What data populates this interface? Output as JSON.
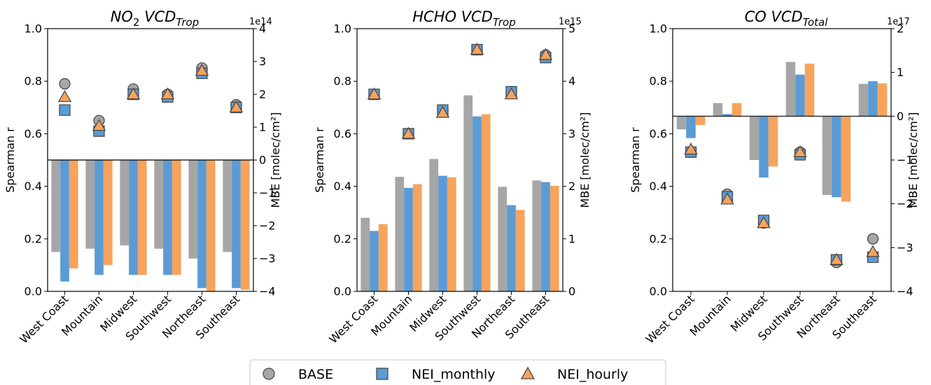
{
  "figure": {
    "legend": [
      {
        "name": "BASE",
        "marker": "circle",
        "color": "#a6a6a6"
      },
      {
        "name": "NEI_monthly",
        "marker": "square",
        "color": "#5b9bd5"
      },
      {
        "name": "NEI_hourly",
        "marker": "triangle",
        "color": "#f7a35c"
      }
    ],
    "legend_placement": "bottom-center",
    "marker_edge_color": "#4a4a4a"
  },
  "chart_data": [
    {
      "type": "bar",
      "title_main": "NO",
      "title_sub_small": "2",
      "title_mid": " VCD",
      "title_sub": "Trop",
      "ylabel_left": "Spearman r",
      "ylabel_right": "MBE [molec/cm²]",
      "right_axis_offset": "1e14",
      "categories": [
        "West Coast",
        "Mountain",
        "Midwest",
        "Southwest",
        "Northeast",
        "Southeast"
      ],
      "ylim_left": [
        0.0,
        1.0
      ],
      "yticks_left": [
        "0.0",
        "0.2",
        "0.4",
        "0.6",
        "0.8",
        "1.0"
      ],
      "ylim_right": [
        -4,
        4
      ],
      "yticks_right": [
        "−4",
        "−3",
        "−2",
        "−1",
        "0",
        "1",
        "2",
        "3",
        "4"
      ],
      "zero_line": 0,
      "mbe_series": [
        {
          "name": "BASE",
          "values": [
            -2.8,
            -2.7,
            -2.6,
            -2.7,
            -3.0,
            -2.8
          ]
        },
        {
          "name": "NEI_monthly",
          "values": [
            -3.7,
            -3.5,
            -3.5,
            -3.5,
            -3.9,
            -3.9
          ]
        },
        {
          "name": "NEI_hourly",
          "values": [
            -3.3,
            -3.2,
            -3.5,
            -3.5,
            -4.0,
            -3.95
          ]
        }
      ],
      "r_series": [
        {
          "name": "BASE",
          "values": [
            0.79,
            0.65,
            0.77,
            0.75,
            0.85,
            0.71
          ]
        },
        {
          "name": "NEI_monthly",
          "values": [
            0.69,
            0.61,
            0.75,
            0.74,
            0.83,
            0.7
          ]
        },
        {
          "name": "NEI_hourly",
          "values": [
            0.74,
            0.63,
            0.75,
            0.75,
            0.84,
            0.7
          ]
        }
      ]
    },
    {
      "type": "bar",
      "title_main": "HCHO",
      "title_sub_small": "",
      "title_mid": " VCD",
      "title_sub": "Trop",
      "ylabel_left": "Spearman r",
      "ylabel_right": "MBE [molec/cm²]",
      "right_axis_offset": "1e15",
      "categories": [
        "West Coast",
        "Mountain",
        "Midwest",
        "Southwest",
        "Northeast",
        "Southeast"
      ],
      "ylim_left": [
        0.0,
        1.0
      ],
      "yticks_left": [
        "0.0",
        "0.2",
        "0.4",
        "0.6",
        "0.8",
        "1.0"
      ],
      "ylim_right": [
        0,
        5
      ],
      "yticks_right": [
        "0",
        "1",
        "2",
        "3",
        "4",
        "5"
      ],
      "zero_line": null,
      "mbe_series": [
        {
          "name": "BASE",
          "values": [
            1.4,
            2.18,
            2.52,
            3.73,
            1.99,
            2.11
          ]
        },
        {
          "name": "NEI_monthly",
          "values": [
            1.15,
            1.97,
            2.2,
            3.33,
            1.64,
            2.08
          ]
        },
        {
          "name": "NEI_hourly",
          "values": [
            1.28,
            2.04,
            2.17,
            3.37,
            1.55,
            2.01
          ]
        }
      ],
      "r_series": [
        {
          "name": "BASE",
          "values": [
            0.75,
            0.6,
            0.69,
            0.92,
            0.76,
            0.9
          ]
        },
        {
          "name": "NEI_monthly",
          "values": [
            0.75,
            0.6,
            0.69,
            0.92,
            0.76,
            0.89
          ]
        },
        {
          "name": "NEI_hourly",
          "values": [
            0.75,
            0.6,
            0.68,
            0.92,
            0.75,
            0.9
          ]
        }
      ]
    },
    {
      "type": "bar",
      "title_main": "CO",
      "title_sub_small": "",
      "title_mid": " VCD",
      "title_sub": "Total",
      "ylabel_left": "Spearman r",
      "ylabel_right": "MBE [molec/cm²]",
      "right_axis_offset": "1e17",
      "categories": [
        "West Coast",
        "Mountain",
        "Midwest",
        "Southwest",
        "Northeast",
        "Southeast"
      ],
      "ylim_left": [
        0.0,
        1.0
      ],
      "yticks_left": [
        "0.0",
        "0.2",
        "0.4",
        "0.6",
        "0.8",
        "1.0"
      ],
      "ylim_right": [
        -4,
        2
      ],
      "yticks_right": [
        "−4",
        "−3",
        "−2",
        "−1",
        "0",
        "1",
        "2"
      ],
      "zero_line": 0,
      "mbe_series": [
        {
          "name": "BASE",
          "values": [
            -0.3,
            0.3,
            -1.0,
            1.24,
            -1.8,
            0.74
          ]
        },
        {
          "name": "NEI_monthly",
          "values": [
            -0.5,
            0.05,
            -1.4,
            0.95,
            -1.85,
            0.8
          ]
        },
        {
          "name": "NEI_hourly",
          "values": [
            -0.2,
            0.3,
            -1.15,
            1.2,
            -1.95,
            0.75
          ]
        }
      ],
      "r_series": [
        {
          "name": "BASE",
          "values": [
            0.53,
            0.37,
            0.26,
            0.53,
            0.11,
            0.2
          ]
        },
        {
          "name": "NEI_monthly",
          "values": [
            0.53,
            0.36,
            0.27,
            0.52,
            0.12,
            0.13
          ]
        },
        {
          "name": "NEI_hourly",
          "values": [
            0.54,
            0.35,
            0.26,
            0.53,
            0.12,
            0.15
          ]
        }
      ]
    }
  ]
}
